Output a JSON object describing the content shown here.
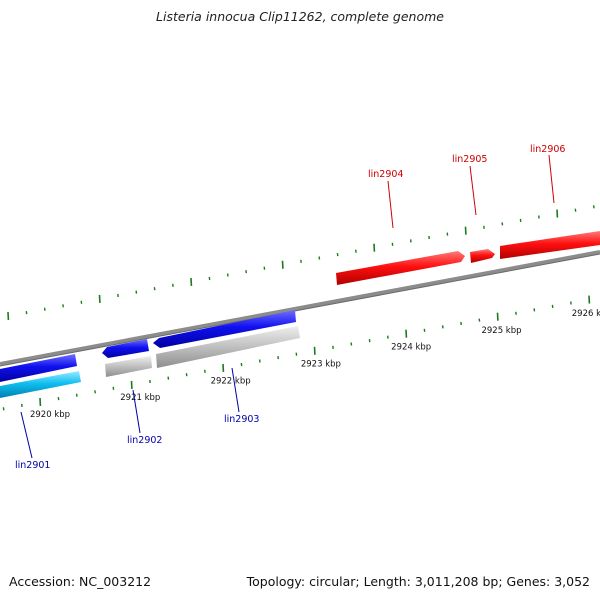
{
  "title": "Listeria innocua Clip11262, complete genome",
  "footer": {
    "accession": "Accession: NC_003212",
    "summary": "Topology: circular; Length: 3,011,208 bp; Genes: 3,052"
  },
  "colors": {
    "backbone": "#8c8c8c",
    "tick": "#1f7a1f",
    "forward_gene": "#e00000",
    "reverse_gene": "#0000dd",
    "reverse_gene_alt": "#00b4e6",
    "pseudo_gene": "#bfbfbf",
    "forward_label": "#cc0000",
    "reverse_label": "#0000aa"
  },
  "ruler": {
    "unit": "kbp",
    "tick_labels": [
      "2920 kbp",
      "2921 kbp",
      "2922 kbp",
      "2923 kbp",
      "2924 kbp",
      "2925 kbp",
      "2926 kbp"
    ]
  },
  "genes": {
    "forward": [
      {
        "label": "lin2904"
      },
      {
        "label": "lin2905"
      },
      {
        "label": "lin2906"
      }
    ],
    "reverse": [
      {
        "label": "lin2901"
      },
      {
        "label": "lin2902"
      },
      {
        "label": "lin2903"
      }
    ]
  }
}
